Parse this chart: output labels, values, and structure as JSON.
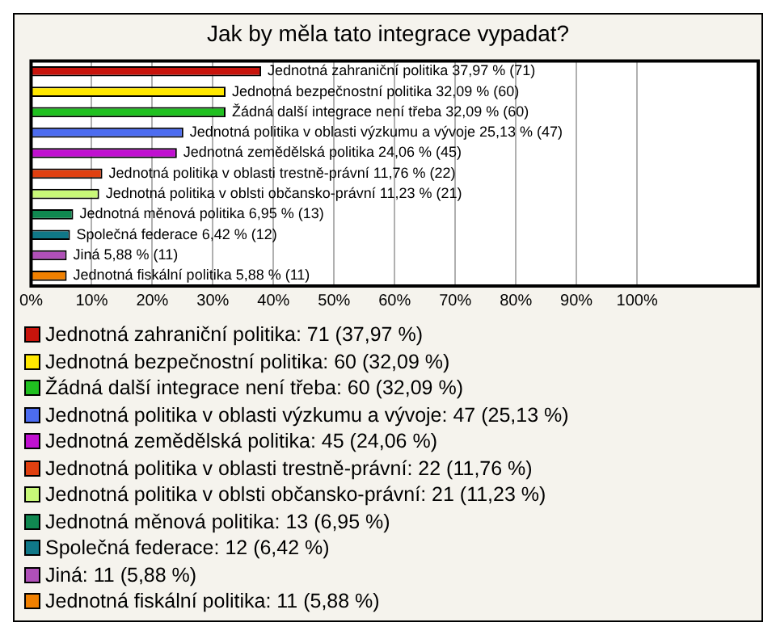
{
  "chart_data": {
    "type": "bar",
    "orientation": "horizontal",
    "title": "Jak by měla tato integrace vypadat?",
    "categories": [
      "Jednotná zahraniční politika",
      "Jednotná bezpečnostní politika",
      "Žádná další integrace není třeba",
      "Jednotná politika v oblasti výzkumu a vývoje",
      "Jednotná zemědělská politika",
      "Jednotná politika v oblasti trestně-právní",
      "Jednotná politika v oblsti občansko-právní",
      "Jednotná měnová politika",
      "Společná federace",
      "Jiná",
      "Jednotná fiskální politika"
    ],
    "values": [
      37.97,
      32.09,
      32.09,
      25.13,
      24.06,
      11.76,
      11.23,
      6.95,
      6.42,
      5.88,
      5.88
    ],
    "colors": [
      "#c8140c",
      "#ffe800",
      "#20c020",
      "#4c6cf0",
      "#c010d0",
      "#e04010",
      "#c8f878",
      "#108850",
      "#107888",
      "#b050b8",
      "#f08000"
    ],
    "value_labels": [
      "37,97 % (71)",
      "32,09 % (60)",
      "32,09 % (60)",
      "25,13 % (47)",
      "24,06 % (45)",
      "11,76 % (22)",
      "11,23 % (21)",
      "6,95 % (13)",
      "6,42 % (12)",
      "5,88 % (11)",
      "5,88 % (11)"
    ],
    "xlim": [
      0,
      120
    ],
    "xticks": [
      {
        "value": 0,
        "label": "0%"
      },
      {
        "value": 10,
        "label": "10%"
      },
      {
        "value": 20,
        "label": "20%"
      },
      {
        "value": 30,
        "label": "30%"
      },
      {
        "value": 40,
        "label": "40%"
      },
      {
        "value": 50,
        "label": "50%"
      },
      {
        "value": 60,
        "label": "60%"
      },
      {
        "value": 70,
        "label": "70%"
      },
      {
        "value": 80,
        "label": "80%"
      },
      {
        "value": 90,
        "label": "90%"
      },
      {
        "value": 100,
        "label": "100%"
      }
    ],
    "grid": "x",
    "tick_labels": "x",
    "annotations": [
      "Jednotná zahraniční politika: 71 (37,97 %)",
      "Jednotná bezpečnostní politika: 60 (32,09 %)",
      "Žádná další integrace není třeba: 60 (32,09 %)",
      "Jednotná politika v oblasti výzkumu a vývoje: 47 (25,13 %)",
      "Jednotná zemědělská politika: 45 (24,06 %)",
      "Jednotná politika v oblasti trestně-právní: 22 (11,76 %)",
      "Jednotná politika v oblsti občansko-právní: 21 (11,23 %)",
      "Jednotná měnová politika: 13 (6,95 %)",
      "Společná federace: 12 (6,42 %)",
      "Jiná: 11 (5,88 %)",
      "Jednotná fiskální politika: 11 (5,88 %)"
    ]
  }
}
